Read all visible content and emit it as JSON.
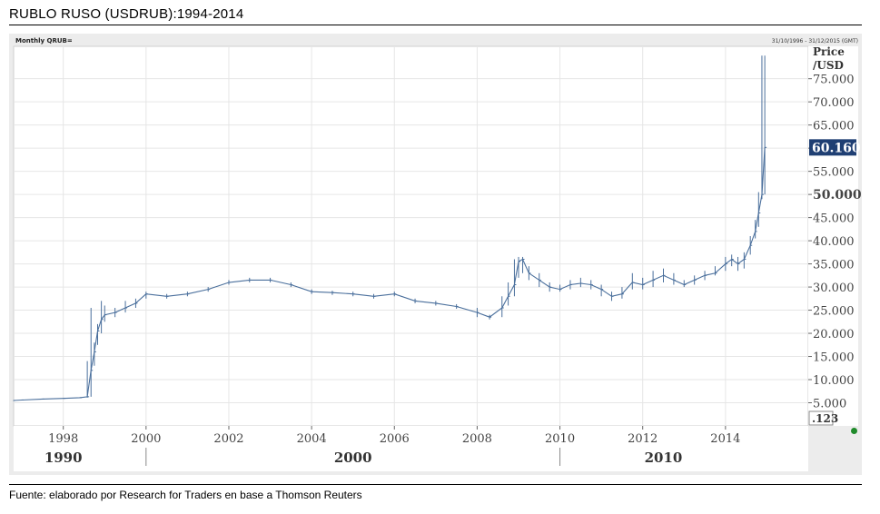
{
  "page": {
    "title": "RUBLO  RUSO  (USDRUB):1994-2014",
    "source": "Fuente: elaborado por Research for Traders en base a Thomson Reuters"
  },
  "chart_header": {
    "series_label": "Monthly QRUB=",
    "date_range": "31/10/1996 - 31/12/2015 (GMT)"
  },
  "colors": {
    "line": "#4a6f9c",
    "last_price_box": "#1f3f73",
    "grid": "#e6e6e6",
    "status_dot": "#1f8a2a"
  },
  "chart_data": {
    "type": "line",
    "ylabel": "Price /USD",
    "ylim": [
      0,
      82
    ],
    "xlim": [
      1996.8,
      2016.0
    ],
    "y_ticks": [
      "5.000",
      "10.000",
      "15.000",
      "20.000",
      "25.000",
      "30.000",
      "35.000",
      "40.000",
      "45.000",
      "50.000",
      "55.000",
      "60.000",
      "65.000",
      "70.000",
      "75.000"
    ],
    "y_tick_values": [
      5,
      10,
      15,
      20,
      25,
      30,
      35,
      40,
      45,
      50,
      55,
      60,
      65,
      70,
      75
    ],
    "highlight_tick": "50.000",
    "last_price": "60.160",
    "last_price_value": 60.16,
    "precision_label": ".123",
    "x_ticks": [
      "1998",
      "2000",
      "2002",
      "2004",
      "2006",
      "2008",
      "2010",
      "2012",
      "2014"
    ],
    "x_tick_values": [
      1998,
      2000,
      2002,
      2004,
      2006,
      2008,
      2010,
      2012,
      2014
    ],
    "decades": [
      {
        "label": "1990",
        "at": 1998.0
      },
      {
        "label": "2000",
        "at": 2005.0
      },
      {
        "label": "2010",
        "at": 2012.5
      }
    ],
    "decade_separators": [
      2000,
      2010
    ],
    "grid": true,
    "series": [
      {
        "x": [
          1996.8,
          1997.0,
          1997.5,
          1998.0,
          1998.4,
          1998.58,
          1998.67,
          1998.75,
          1998.83,
          1998.92,
          1999.0,
          1999.25,
          1999.5,
          1999.75,
          2000.0,
          2000.5,
          2001.0,
          2001.5,
          2002.0,
          2002.5,
          2003.0,
          2003.5,
          2004.0,
          2004.5,
          2005.0,
          2005.5,
          2006.0,
          2006.5,
          2007.0,
          2007.5,
          2008.0,
          2008.3,
          2008.6,
          2008.75,
          2008.9,
          2009.0,
          2009.1,
          2009.25,
          2009.5,
          2009.75,
          2010.0,
          2010.25,
          2010.5,
          2010.75,
          2011.0,
          2011.25,
          2011.5,
          2011.75,
          2012.0,
          2012.25,
          2012.5,
          2012.75,
          2013.0,
          2013.25,
          2013.5,
          2013.75,
          2014.0,
          2014.15,
          2014.3,
          2014.45,
          2014.6,
          2014.72,
          2014.8,
          2014.88,
          2014.95
        ],
        "y": [
          5.5,
          5.6,
          5.8,
          5.95,
          6.1,
          6.3,
          12.0,
          16.0,
          20.5,
          23.0,
          24.0,
          24.5,
          25.5,
          26.5,
          28.5,
          28.0,
          28.5,
          29.5,
          31.0,
          31.5,
          31.5,
          30.5,
          29.0,
          28.8,
          28.5,
          28.0,
          28.5,
          27.0,
          26.5,
          25.8,
          24.5,
          23.5,
          25.5,
          28.0,
          30.5,
          35.5,
          36.0,
          33.0,
          31.5,
          30.0,
          29.5,
          30.5,
          30.8,
          30.5,
          29.5,
          28.0,
          28.5,
          31.0,
          30.5,
          31.5,
          32.5,
          31.5,
          30.5,
          31.5,
          32.5,
          33.0,
          35.0,
          36.0,
          35.0,
          36.0,
          39.0,
          42.0,
          46.0,
          50.0,
          60.16
        ],
        "hi": [
          5.6,
          5.7,
          5.9,
          6.0,
          6.2,
          14.0,
          25.5,
          18.0,
          22.0,
          27.0,
          26.0,
          25.5,
          27.0,
          27.5,
          29.0,
          28.5,
          29.0,
          30.0,
          31.5,
          32.0,
          32.0,
          31.0,
          29.5,
          29.2,
          29.0,
          28.5,
          29.0,
          27.5,
          27.0,
          26.3,
          25.5,
          24.0,
          28.0,
          31.0,
          36.0,
          36.5,
          36.5,
          34.5,
          33.0,
          31.0,
          30.5,
          31.5,
          32.0,
          31.5,
          30.5,
          29.0,
          30.0,
          33.0,
          32.0,
          33.5,
          34.0,
          33.0,
          31.5,
          32.5,
          33.5,
          34.5,
          36.5,
          37.0,
          36.5,
          37.5,
          41.0,
          44.5,
          50.5,
          80.0,
          80.0
        ],
        "lo": [
          5.4,
          5.5,
          5.7,
          5.9,
          6.0,
          6.1,
          6.3,
          13.0,
          17.5,
          20.0,
          22.5,
          23.5,
          24.5,
          25.5,
          27.5,
          27.5,
          28.0,
          29.0,
          30.5,
          31.0,
          31.0,
          30.0,
          28.5,
          28.3,
          28.0,
          27.5,
          28.0,
          26.5,
          26.0,
          25.3,
          23.5,
          23.0,
          23.5,
          26.0,
          28.0,
          32.0,
          33.0,
          31.5,
          30.0,
          29.0,
          29.0,
          29.5,
          30.0,
          29.5,
          28.0,
          27.0,
          27.5,
          29.5,
          29.5,
          30.0,
          31.0,
          30.5,
          30.0,
          30.5,
          31.5,
          32.5,
          33.5,
          34.5,
          33.5,
          34.0,
          37.0,
          40.5,
          43.0,
          49.0,
          50.0
        ]
      }
    ]
  }
}
